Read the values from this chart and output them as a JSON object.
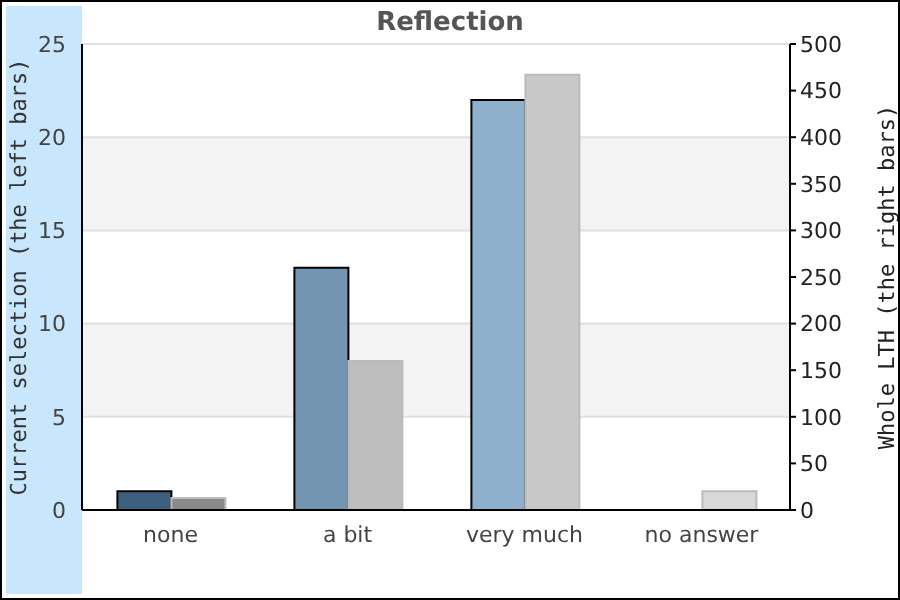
{
  "chart_data": {
    "type": "bar",
    "title": "Reflection",
    "categories": [
      "none",
      "a bit",
      "very much",
      "no answer"
    ],
    "ylabel": "Current selection (the left bars)",
    "y2label": "Whole LTH (the right bars)",
    "series": [
      {
        "colors": [
          "#3f5f7f",
          "#7495b2",
          "#8fb0cc",
          "#8fb0cc"
        ],
        "values": [
          1,
          13,
          22,
          0
        ]
      },
      {
        "axis": "y2",
        "colors": [
          "#8a8a8a",
          "#bdbdbd",
          "#c8c8c8",
          "#d8d8d8"
        ],
        "values": [
          13,
          160,
          467,
          20
        ]
      }
    ],
    "ylim": [
      0,
      25
    ],
    "yticks": [
      0,
      5,
      10,
      15,
      20,
      25
    ],
    "y2lim": [
      0,
      500
    ],
    "y2ticks": [
      0,
      50,
      100,
      150,
      200,
      250,
      300,
      350,
      400,
      450,
      500
    ],
    "grid": "y"
  }
}
